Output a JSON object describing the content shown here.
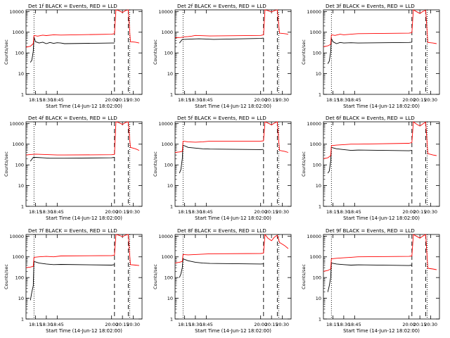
{
  "figure": {
    "background": "#ffffff",
    "colors": {
      "events": "#000000",
      "lld": "#ff0000",
      "axes": "#000000"
    }
  },
  "chart_data": [
    {
      "type": "line",
      "title": "Det 1f BLACK = Events, RED = LLD",
      "xlabel": "Start Time (14-Jun-12 18:02:00)",
      "ylabel": "Counts/sec",
      "yscale": "log",
      "ylim": [
        1,
        12000
      ],
      "xlim": [
        "18:02",
        "20:42"
      ],
      "xticks": [
        "18:15",
        "18:30",
        "18:45",
        "20:00",
        "20:15",
        "20:30"
      ],
      "yticks": [
        "1",
        "10",
        "100",
        "1000",
        "10000"
      ],
      "dotted_vlines": [
        "18:13",
        "20:25"
      ],
      "dashed_vlines": [
        "20:04",
        "20:23"
      ],
      "series": [
        {
          "color": "#000000",
          "x": [
            "18:02",
            "18:08",
            "18:10",
            "18:12",
            "18:13",
            "18:15",
            "18:20",
            "18:25",
            "18:30",
            "18:35",
            "18:40",
            "18:45",
            "18:50",
            "18:55",
            "20:00",
            "20:04"
          ],
          "y": [
            null,
            35,
            45,
            120,
            600,
            350,
            300,
            330,
            280,
            320,
            290,
            310,
            300,
            280,
            300,
            300
          ]
        },
        {
          "color": "#ff0000",
          "x": [
            "18:02",
            "18:08",
            "18:12",
            "18:13",
            "18:18",
            "18:25",
            "18:30",
            "18:40",
            "18:50",
            "20:00",
            "20:04",
            "20:06",
            "20:10",
            "20:15",
            "20:19",
            "20:23",
            "20:26",
            "20:33",
            "20:38"
          ],
          "y": [
            190,
            210,
            280,
            700,
            650,
            720,
            690,
            750,
            730,
            800,
            850,
            12000,
            11000,
            9000,
            11000,
            12000,
            350,
            330,
            300
          ]
        }
      ]
    },
    {
      "type": "line",
      "title": "Det 2f BLACK = Events, RED = LLD",
      "xlabel": "Start Time (14-Jun-12 18:02:00)",
      "ylabel": "Counts/sec",
      "yscale": "log",
      "ylim": [
        1,
        12000
      ],
      "xlim": [
        "18:02",
        "20:42"
      ],
      "xticks": [
        "18:15",
        "18:30",
        "18:45",
        "20:00",
        "20:15",
        "20:30"
      ],
      "yticks": [
        "1",
        "10",
        "100",
        "1000",
        "10000"
      ],
      "dotted_vlines": [
        "18:13",
        "20:25"
      ],
      "dashed_vlines": [
        "20:04",
        "20:23"
      ],
      "series": [
        {
          "color": "#000000",
          "x": [
            "18:08",
            "18:12",
            "18:15",
            "18:25",
            "18:35",
            "18:45",
            "18:55",
            "20:00",
            "20:04"
          ],
          "y": [
            300,
            450,
            450,
            470,
            480,
            470,
            450,
            500,
            520
          ]
        },
        {
          "color": "#ff0000",
          "x": [
            "18:02",
            "18:10",
            "18:15",
            "18:20",
            "18:25",
            "18:30",
            "18:40",
            "18:50",
            "20:00",
            "20:04",
            "20:06",
            "20:10",
            "20:15",
            "20:19",
            "20:23",
            "20:26",
            "20:33",
            "20:38"
          ],
          "y": [
            550,
            560,
            600,
            620,
            650,
            700,
            680,
            660,
            700,
            750,
            12000,
            11000,
            9500,
            11000,
            12000,
            900,
            850,
            800
          ]
        }
      ]
    },
    {
      "type": "line",
      "title": "Det 3f BLACK = Events, RED = LLD",
      "xlabel": "Start Time (14-Jun-12 18:02:00)",
      "ylabel": "Counts/sec",
      "yscale": "log",
      "ylim": [
        1,
        12000
      ],
      "xlim": [
        "18:02",
        "20:42"
      ],
      "xticks": [
        "18:15",
        "18:30",
        "18:45",
        "20:00",
        "20:15",
        "20:30"
      ],
      "yticks": [
        "1",
        "10",
        "100",
        "1000",
        "10000"
      ],
      "dotted_vlines": [
        "18:13",
        "20:25"
      ],
      "dashed_vlines": [
        "20:04",
        "20:23"
      ],
      "series": [
        {
          "color": "#000000",
          "x": [
            "18:08",
            "18:10",
            "18:12",
            "18:13",
            "18:15",
            "18:20",
            "18:25",
            "18:30",
            "18:40",
            "18:50",
            "20:00",
            "20:04"
          ],
          "y": [
            30,
            40,
            110,
            500,
            350,
            280,
            320,
            300,
            310,
            300,
            320,
            330
          ]
        },
        {
          "color": "#ff0000",
          "x": [
            "18:02",
            "18:08",
            "18:12",
            "18:13",
            "18:18",
            "18:25",
            "18:30",
            "18:40",
            "18:50",
            "20:00",
            "20:04",
            "20:06",
            "20:10",
            "20:15",
            "20:19",
            "20:23",
            "20:26",
            "20:33",
            "20:38"
          ],
          "y": [
            200,
            220,
            260,
            750,
            700,
            800,
            750,
            800,
            850,
            900,
            950,
            12000,
            10000,
            8000,
            10000,
            11500,
            320,
            300,
            280
          ]
        }
      ]
    },
    {
      "type": "line",
      "title": "Det 4f BLACK = Events, RED = LLD",
      "xlabel": "Start Time (14-Jun-12 18:02:00)",
      "ylabel": "Counts/sec",
      "yscale": "log",
      "ylim": [
        1,
        12000
      ],
      "xlim": [
        "18:02",
        "20:42"
      ],
      "xticks": [
        "18:15",
        "18:30",
        "18:45",
        "20:00",
        "20:15",
        "20:30"
      ],
      "yticks": [
        "1",
        "10",
        "100",
        "1000",
        "10000"
      ],
      "dotted_vlines": [
        "18:13",
        "20:25"
      ],
      "dashed_vlines": [
        "20:04",
        "20:23"
      ],
      "series": [
        {
          "color": "#000000",
          "x": [
            "18:08",
            "18:12",
            "18:15",
            "18:25",
            "18:35",
            "18:45",
            "18:55",
            "20:00",
            "20:04"
          ],
          "y": [
            150,
            230,
            230,
            220,
            210,
            210,
            210,
            220,
            230
          ]
        },
        {
          "color": "#ff0000",
          "x": [
            "18:02",
            "18:10",
            "18:15",
            "18:25",
            "18:35",
            "18:45",
            "18:55",
            "20:00",
            "20:04",
            "20:06",
            "20:10",
            "20:15",
            "20:19",
            "20:23",
            "20:26",
            "20:33",
            "20:38"
          ],
          "y": [
            300,
            320,
            330,
            320,
            310,
            300,
            300,
            310,
            320,
            12000,
            11000,
            9000,
            11000,
            12000,
            700,
            600,
            500
          ]
        }
      ]
    },
    {
      "type": "line",
      "title": "Det 5f BLACK = Events, RED = LLD",
      "xlabel": "Start Time (14-Jun-12 18:02:00)",
      "ylabel": "Counts/sec",
      "yscale": "log",
      "ylim": [
        1,
        12000
      ],
      "xlim": [
        "18:02",
        "20:42"
      ],
      "xticks": [
        "18:15",
        "18:30",
        "18:45",
        "20:00",
        "20:15",
        "20:30"
      ],
      "yticks": [
        "1",
        "10",
        "100",
        "1000",
        "10000"
      ],
      "dotted_vlines": [
        "18:13",
        "20:25"
      ],
      "dashed_vlines": [
        "20:04",
        "20:23"
      ],
      "series": [
        {
          "color": "#000000",
          "x": [
            "18:08",
            "18:10",
            "18:12",
            "18:13",
            "18:20",
            "18:30",
            "18:40",
            "18:50",
            "20:00",
            "20:04"
          ],
          "y": [
            40,
            60,
            200,
            900,
            700,
            650,
            600,
            580,
            550,
            560
          ]
        },
        {
          "color": "#ff0000",
          "x": [
            "18:02",
            "18:08",
            "18:12",
            "18:13",
            "18:20",
            "18:30",
            "18:40",
            "18:50",
            "20:00",
            "20:04",
            "20:06",
            "20:10",
            "20:15",
            "20:19",
            "20:23",
            "20:26",
            "20:33",
            "20:38"
          ],
          "y": [
            400,
            420,
            450,
            1400,
            1300,
            1250,
            1300,
            1400,
            1400,
            1450,
            12000,
            10500,
            8500,
            10500,
            12000,
            500,
            450,
            400
          ]
        }
      ]
    },
    {
      "type": "line",
      "title": "Det 6f BLACK = Events, RED = LLD",
      "xlabel": "Start Time (14-Jun-12 18:02:00)",
      "ylabel": "Counts/sec",
      "yscale": "log",
      "ylim": [
        1,
        12000
      ],
      "xlim": [
        "18:02",
        "20:42"
      ],
      "xticks": [
        "18:15",
        "18:30",
        "18:45",
        "20:00",
        "20:15",
        "20:30"
      ],
      "yticks": [
        "1",
        "10",
        "100",
        "1000",
        "10000"
      ],
      "dotted_vlines": [
        "18:13",
        "20:25"
      ],
      "dashed_vlines": [
        "20:04",
        "20:23"
      ],
      "series": [
        {
          "color": "#000000",
          "x": [
            "18:08",
            "18:10",
            "18:12",
            "18:13",
            "18:20",
            "18:30",
            "18:40",
            "18:50",
            "20:00",
            "20:04"
          ],
          "y": [
            40,
            50,
            150,
            700,
            600,
            550,
            500,
            520,
            480,
            500
          ]
        },
        {
          "color": "#ff0000",
          "x": [
            "18:02",
            "18:08",
            "18:12",
            "18:13",
            "18:20",
            "18:30",
            "18:40",
            "18:50",
            "20:00",
            "20:04",
            "20:06",
            "20:10",
            "20:15",
            "20:19",
            "20:23",
            "20:26",
            "20:33",
            "20:38"
          ],
          "y": [
            200,
            220,
            280,
            850,
            900,
            950,
            1000,
            1000,
            1100,
            1200,
            12000,
            9500,
            7500,
            9500,
            11500,
            350,
            300,
            280
          ]
        }
      ]
    },
    {
      "type": "line",
      "title": "Det 7f BLACK = Events, RED = LLD",
      "xlabel": "Start Time (14-Jun-12 18:02:00)",
      "ylabel": "Counts/sec",
      "yscale": "log",
      "ylim": [
        1,
        12000
      ],
      "xlim": [
        "18:02",
        "20:42"
      ],
      "xticks": [
        "18:15",
        "18:30",
        "18:45",
        "20:00",
        "20:15",
        "20:30"
      ],
      "yticks": [
        "1",
        "10",
        "100",
        "1000",
        "10000"
      ],
      "dotted_vlines": [
        "18:13",
        "20:25"
      ],
      "dashed_vlines": [
        "20:04",
        "20:23"
      ],
      "series": [
        {
          "color": "#000000",
          "x": [
            "18:08",
            "18:10",
            "18:12",
            "18:13",
            "18:20",
            "18:30",
            "18:40",
            "18:50",
            "20:00",
            "20:04"
          ],
          "y": [
            8,
            20,
            40,
            600,
            500,
            450,
            420,
            430,
            400,
            420
          ]
        },
        {
          "color": "#ff0000",
          "x": [
            "18:02",
            "18:08",
            "18:12",
            "18:13",
            "18:20",
            "18:30",
            "18:40",
            "18:50",
            "20:00",
            "20:04",
            "20:06",
            "20:10",
            "20:15",
            "20:19",
            "20:23",
            "20:26",
            "20:33",
            "20:38"
          ],
          "y": [
            300,
            320,
            350,
            950,
            1000,
            1050,
            1000,
            1100,
            1150,
            1200,
            12000,
            11000,
            9500,
            11000,
            12000,
            420,
            400,
            380
          ]
        }
      ]
    },
    {
      "type": "line",
      "title": "Det 8f BLACK = Events, RED = LLD",
      "xlabel": "Start Time (14-Jun-12 18:02:00)",
      "ylabel": "Counts/sec",
      "yscale": "log",
      "ylim": [
        1,
        12000
      ],
      "xlim": [
        "18:02",
        "20:42"
      ],
      "xticks": [
        "18:15",
        "18:30",
        "18:45",
        "20:00",
        "20:15",
        "20:30"
      ],
      "yticks": [
        "1",
        "10",
        "100",
        "1000",
        "10000"
      ],
      "dotted_vlines": [
        "18:13",
        "20:25"
      ],
      "dashed_vlines": [
        "20:04",
        "20:23"
      ],
      "series": [
        {
          "color": "#000000",
          "x": [
            "18:08",
            "18:10",
            "18:12",
            "18:13",
            "18:20",
            "18:30",
            "18:40",
            "18:50",
            "20:00",
            "20:04"
          ],
          "y": [
            100,
            150,
            300,
            800,
            650,
            550,
            500,
            480,
            450,
            460
          ]
        },
        {
          "color": "#ff0000",
          "x": [
            "18:02",
            "18:08",
            "18:12",
            "18:13",
            "18:20",
            "18:30",
            "18:40",
            "18:50",
            "20:00",
            "20:04",
            "20:06",
            "20:10",
            "20:15",
            "20:19",
            "20:23",
            "20:26",
            "20:33",
            "20:38"
          ],
          "y": [
            500,
            550,
            600,
            1300,
            1250,
            1300,
            1350,
            1400,
            1450,
            1500,
            12000,
            8000,
            6000,
            9000,
            11000,
            5000,
            3500,
            2500
          ]
        }
      ]
    },
    {
      "type": "line",
      "title": "Det 9f BLACK = Events, RED = LLD",
      "xlabel": "Start Time (14-Jun-12 18:02:00)",
      "ylabel": "Counts/sec",
      "yscale": "log",
      "ylim": [
        1,
        12000
      ],
      "xlim": [
        "18:02",
        "20:42"
      ],
      "xticks": [
        "18:15",
        "18:30",
        "18:45",
        "20:00",
        "20:15",
        "20:30"
      ],
      "yticks": [
        "1",
        "10",
        "100",
        "1000",
        "10000"
      ],
      "dotted_vlines": [
        "18:13",
        "20:25"
      ],
      "dashed_vlines": [
        "20:04",
        "20:23"
      ],
      "series": [
        {
          "color": "#000000",
          "x": [
            "18:08",
            "18:10",
            "18:12",
            "18:13",
            "18:20",
            "18:30",
            "18:40",
            "18:50",
            "20:00",
            "20:04"
          ],
          "y": [
            20,
            40,
            100,
            500,
            450,
            420,
            400,
            410,
            380,
            400
          ]
        },
        {
          "color": "#ff0000",
          "x": [
            "18:02",
            "18:08",
            "18:12",
            "18:13",
            "18:20",
            "18:30",
            "18:40",
            "18:50",
            "20:00",
            "20:04",
            "20:06",
            "20:10",
            "20:15",
            "20:19",
            "20:23",
            "20:26",
            "20:33",
            "20:38"
          ],
          "y": [
            200,
            220,
            260,
            800,
            850,
            900,
            950,
            1000,
            1050,
            1100,
            12000,
            10000,
            8000,
            10000,
            12000,
            280,
            260,
            240
          ]
        }
      ]
    }
  ]
}
